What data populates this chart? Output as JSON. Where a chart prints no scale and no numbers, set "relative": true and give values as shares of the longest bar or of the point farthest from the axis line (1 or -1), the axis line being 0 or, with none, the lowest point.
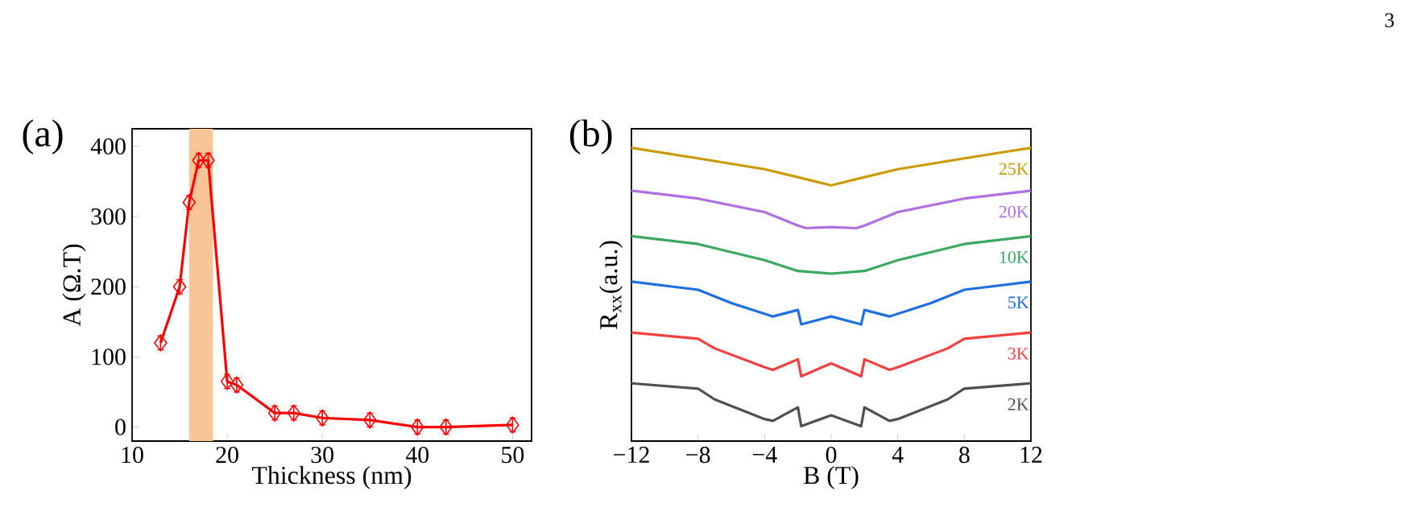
{
  "chart_data": [
    {
      "type": "line",
      "xlabel": "Thickness (nm)",
      "ylabel": "A (Ω.T)",
      "annotations": [
        "(a)",
        "3"
      ],
      "x": [
        13,
        15,
        16,
        17,
        18,
        20,
        21,
        25,
        27,
        30,
        35,
        40,
        43,
        50
      ],
      "series": [
        {
          "color": "#ff0000",
          "values": [
            120,
            200,
            320,
            380,
            380,
            65,
            60,
            20,
            20,
            13,
            10,
            0,
            0,
            3
          ],
          "errors": [
            10,
            10,
            10,
            10,
            10,
            10,
            10,
            10,
            10,
            10,
            10,
            10,
            10,
            10
          ]
        }
      ],
      "xlim": [
        10,
        52
      ],
      "ylim": [
        -20,
        425
      ],
      "xticks": [
        10,
        20,
        30,
        40,
        50
      ],
      "yticks": [
        0,
        100,
        200,
        300,
        400
      ],
      "bands": [
        {
          "axis": "x",
          "from": 16,
          "to": 18.5,
          "color": "#f9c596"
        }
      ],
      "marker": "diamond"
    },
    {
      "type": "line",
      "xlabel": "B (T)",
      "ylabel": "R$_{xx}$(a.u.)",
      "annotations": [
        "(b)"
      ],
      "relative": true,
      "xlim": [
        -12,
        12
      ],
      "xticks": [
        {
          "value": -12,
          "label": "−12"
        },
        {
          "value": -8,
          "label": "−8"
        },
        {
          "value": -4,
          "label": "−4"
        },
        0,
        4,
        8,
        12
      ],
      "series": [
        {
          "name": "25K",
          "color": "#cc9a06",
          "x": [
            -12,
            -8,
            -4,
            -2,
            0,
            2,
            4,
            8,
            12
          ],
          "values": [
            1.0,
            0.964,
            0.927,
            0.9,
            0.872,
            0.9,
            0.927,
            0.964,
            1.0
          ]
        },
        {
          "name": "20K",
          "color": "#b06fe0",
          "x": [
            -12,
            -8,
            -4,
            -2,
            -1.5,
            0,
            1.5,
            2,
            4,
            8,
            12
          ],
          "values": [
            0.854,
            0.827,
            0.781,
            0.735,
            0.726,
            0.73,
            0.726,
            0.735,
            0.781,
            0.827,
            0.854
          ]
        },
        {
          "name": "10K",
          "color": "#3aa860",
          "x": [
            -12,
            -8,
            -4,
            -2,
            0,
            2,
            4,
            8,
            12
          ],
          "values": [
            0.699,
            0.672,
            0.617,
            0.58,
            0.571,
            0.58,
            0.617,
            0.672,
            0.699
          ]
        },
        {
          "name": "5K",
          "color": "#1f6fe0",
          "x": [
            -12,
            -8,
            -6,
            -3.5,
            -2,
            -1.8,
            0,
            1.8,
            2,
            3.5,
            6,
            8,
            12
          ],
          "values": [
            0.544,
            0.516,
            0.471,
            0.425,
            0.447,
            0.398,
            0.425,
            0.398,
            0.447,
            0.425,
            0.471,
            0.516,
            0.544
          ]
        },
        {
          "name": "3K",
          "color": "#f04040",
          "x": [
            -12,
            -8,
            -7,
            -4,
            -3.5,
            -2,
            -1.8,
            0,
            1.8,
            2,
            3.5,
            4,
            7,
            8,
            12
          ],
          "values": [
            0.37,
            0.349,
            0.316,
            0.252,
            0.243,
            0.279,
            0.221,
            0.265,
            0.221,
            0.279,
            0.243,
            0.252,
            0.316,
            0.349,
            0.37
          ]
        },
        {
          "name": "2K",
          "color": "#505050",
          "x": [
            -12,
            -8,
            -7,
            -4,
            -3.5,
            -2,
            -1.8,
            0,
            1.8,
            2,
            3.5,
            4,
            7,
            8,
            12
          ],
          "values": [
            0.197,
            0.179,
            0.142,
            0.075,
            0.069,
            0.115,
            0.051,
            0.088,
            0.051,
            0.115,
            0.069,
            0.075,
            0.142,
            0.179,
            0.197
          ]
        }
      ],
      "marker": "none"
    }
  ]
}
